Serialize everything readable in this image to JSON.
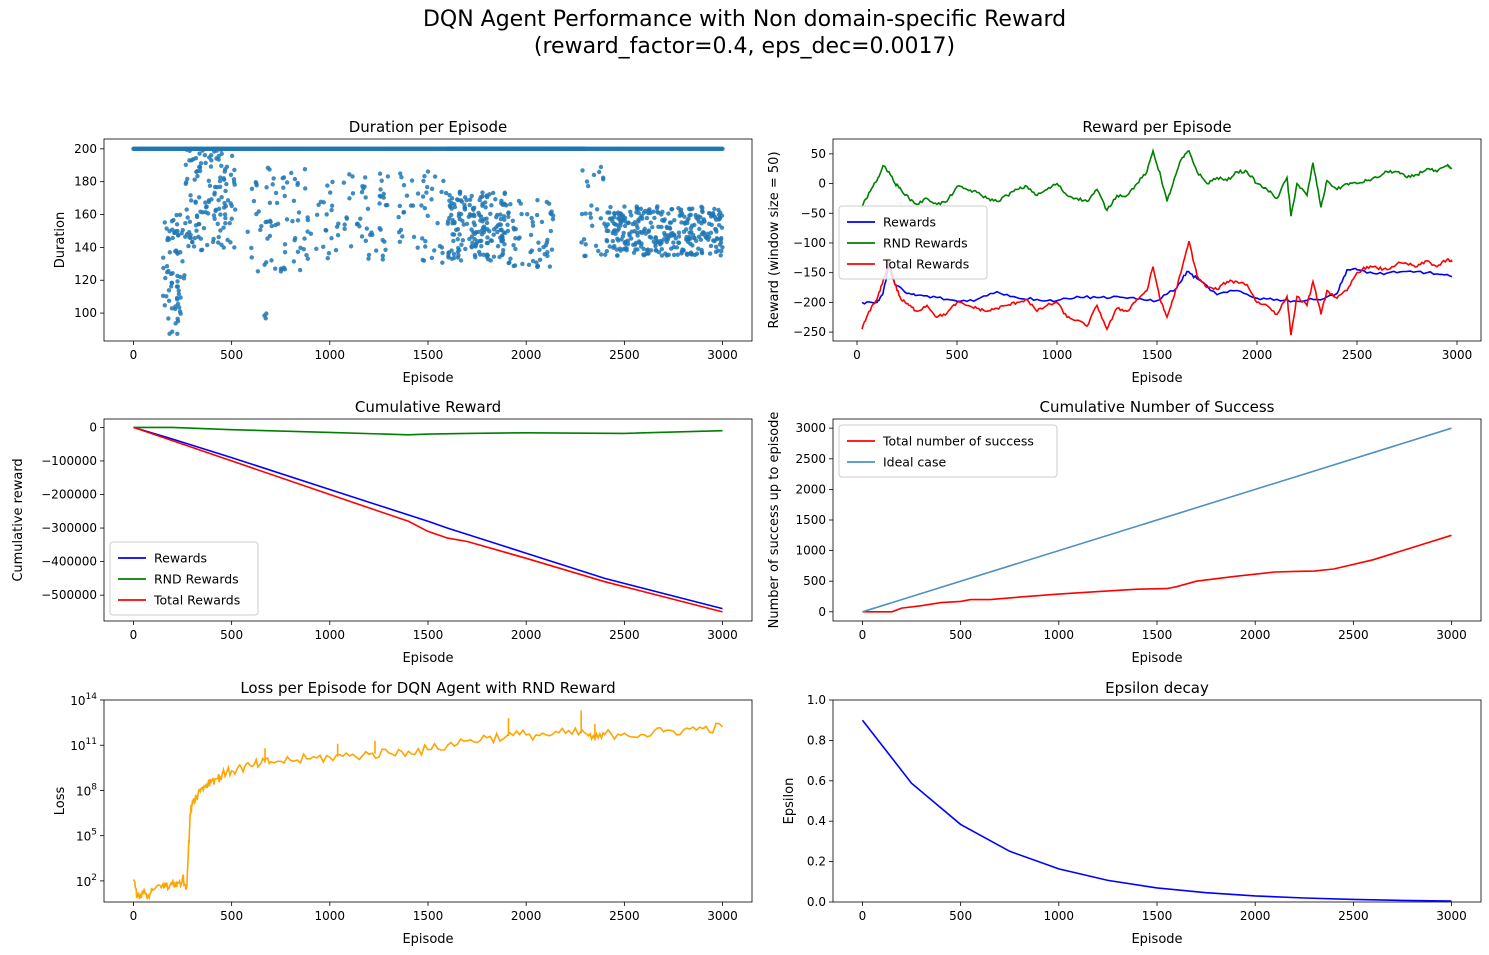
{
  "figure": {
    "title_line1": "DQN Agent Performance with Non domain-specific Reward",
    "title_line2": "(reward_factor=0.4, eps_dec=0.0017)"
  },
  "chart_data": [
    {
      "id": "duration",
      "type": "scatter",
      "title": "Duration per Episode",
      "xlabel": "Episode",
      "ylabel": "Duration",
      "xlim": [
        -150,
        3150
      ],
      "ylim": [
        83,
        206
      ],
      "xticks": [
        0,
        500,
        1000,
        1500,
        2000,
        2500,
        3000
      ],
      "yticks": [
        100,
        120,
        140,
        160,
        180,
        200
      ],
      "color": "#1f77b4",
      "series": [
        {
          "x": [
            0,
            1600
          ],
          "y": [
            200,
            200
          ],
          "kind": "dense-band"
        },
        {
          "x": [
            1600,
            2300
          ],
          "y": [
            200,
            200
          ],
          "kind": "dense-band"
        },
        {
          "x": [
            2300,
            3000
          ],
          "y": [
            200,
            200
          ],
          "kind": "sparse-band"
        }
      ],
      "clusters": [
        {
          "x": [
            150,
            260
          ],
          "y": [
            87,
            160
          ],
          "n": 70
        },
        {
          "x": [
            260,
            520
          ],
          "y": [
            138,
            200
          ],
          "n": 130
        },
        {
          "x": [
            580,
            900
          ],
          "y": [
            125,
            190
          ],
          "n": 70
        },
        {
          "x": [
            650,
            680
          ],
          "y": [
            96,
            102
          ],
          "n": 3
        },
        {
          "x": [
            900,
            1300
          ],
          "y": [
            132,
            185
          ],
          "n": 70
        },
        {
          "x": [
            1350,
            1600
          ],
          "y": [
            130,
            190
          ],
          "n": 45
        },
        {
          "x": [
            1600,
            1900
          ],
          "y": [
            132,
            175
          ],
          "n": 180
        },
        {
          "x": [
            1900,
            2150
          ],
          "y": [
            128,
            170
          ],
          "n": 60
        },
        {
          "x": [
            2280,
            2400
          ],
          "y": [
            133,
            190
          ],
          "n": 25
        },
        {
          "x": [
            2400,
            3000
          ],
          "y": [
            135,
            165
          ],
          "n": 320
        }
      ]
    },
    {
      "id": "reward",
      "type": "line",
      "title": "Reward per Episode",
      "xlabel": "Episode",
      "ylabel": "Reward (window size = 50)",
      "xlim": [
        -120,
        3120
      ],
      "ylim": [
        -265,
        75
      ],
      "xticks": [
        0,
        500,
        1000,
        1500,
        2000,
        2500,
        3000
      ],
      "yticks": [
        -250,
        -200,
        -150,
        -100,
        -50,
        0,
        50
      ],
      "legend": {
        "position": "center-left",
        "entries": [
          "Rewards",
          "RND Rewards",
          "Total Rewards"
        ]
      },
      "series": [
        {
          "name": "Rewards",
          "color": "#0000ff",
          "x": [
            25,
            100,
            130,
            160,
            190,
            250,
            300,
            400,
            500,
            600,
            700,
            800,
            900,
            1000,
            1100,
            1200,
            1300,
            1400,
            1500,
            1600,
            1650,
            1700,
            1800,
            1900,
            2000,
            2100,
            2200,
            2300,
            2400,
            2450,
            2500,
            2600,
            2700,
            2800,
            2900,
            2975
          ],
          "y": [
            -200,
            -200,
            -185,
            -138,
            -170,
            -185,
            -188,
            -192,
            -198,
            -195,
            -182,
            -192,
            -195,
            -197,
            -190,
            -192,
            -190,
            -195,
            -197,
            -175,
            -148,
            -160,
            -187,
            -180,
            -193,
            -195,
            -198,
            -195,
            -185,
            -145,
            -145,
            -152,
            -150,
            -148,
            -152,
            -157
          ]
        },
        {
          "name": "RND Rewards",
          "color": "#008000",
          "x": [
            25,
            60,
            100,
            130,
            160,
            190,
            220,
            260,
            300,
            350,
            400,
            450,
            500,
            550,
            600,
            650,
            700,
            750,
            800,
            850,
            900,
            950,
            1000,
            1050,
            1100,
            1150,
            1200,
            1250,
            1300,
            1350,
            1400,
            1450,
            1480,
            1520,
            1550,
            1580,
            1620,
            1660,
            1700,
            1750,
            1800,
            1850,
            1900,
            1950,
            2000,
            2050,
            2100,
            2150,
            2170,
            2200,
            2250,
            2280,
            2320,
            2350,
            2400,
            2450,
            2500,
            2550,
            2600,
            2650,
            2700,
            2750,
            2800,
            2850,
            2900,
            2950,
            2975
          ],
          "y": [
            -40,
            -15,
            5,
            30,
            20,
            0,
            -10,
            -25,
            -35,
            -25,
            -35,
            -30,
            -5,
            -10,
            -15,
            -25,
            -30,
            -20,
            -10,
            -5,
            -20,
            -10,
            0,
            -20,
            -25,
            -30,
            -10,
            -45,
            -20,
            -20,
            0,
            20,
            55,
            10,
            -30,
            0,
            40,
            55,
            20,
            0,
            10,
            5,
            20,
            20,
            0,
            -10,
            -25,
            10,
            -55,
            0,
            -20,
            35,
            -40,
            5,
            -10,
            0,
            0,
            5,
            10,
            20,
            20,
            10,
            15,
            25,
            20,
            30,
            25
          ]
        },
        {
          "name": "Total Rewards",
          "color": "#ff0000",
          "x": [
            25,
            60,
            100,
            130,
            160,
            190,
            220,
            260,
            300,
            350,
            400,
            450,
            500,
            550,
            600,
            650,
            700,
            750,
            800,
            850,
            900,
            950,
            1000,
            1050,
            1100,
            1150,
            1200,
            1250,
            1300,
            1350,
            1400,
            1450,
            1480,
            1520,
            1550,
            1580,
            1620,
            1660,
            1700,
            1750,
            1800,
            1850,
            1900,
            1950,
            2000,
            2050,
            2100,
            2150,
            2170,
            2200,
            2250,
            2280,
            2320,
            2350,
            2400,
            2450,
            2500,
            2550,
            2600,
            2650,
            2700,
            2750,
            2800,
            2850,
            2900,
            2950,
            2975
          ],
          "y": [
            -245,
            -215,
            -195,
            -165,
            -130,
            -170,
            -195,
            -205,
            -215,
            -205,
            -225,
            -218,
            -200,
            -205,
            -210,
            -215,
            -210,
            -205,
            -200,
            -195,
            -215,
            -205,
            -200,
            -225,
            -230,
            -240,
            -205,
            -245,
            -210,
            -215,
            -195,
            -180,
            -140,
            -200,
            -225,
            -195,
            -150,
            -97,
            -155,
            -175,
            -178,
            -165,
            -165,
            -170,
            -200,
            -205,
            -220,
            -190,
            -255,
            -190,
            -205,
            -165,
            -220,
            -180,
            -193,
            -180,
            -150,
            -140,
            -142,
            -145,
            -135,
            -135,
            -140,
            -130,
            -140,
            -128,
            -132
          ]
        }
      ]
    },
    {
      "id": "cumulative-reward",
      "type": "line",
      "title": "Cumulative Reward",
      "xlabel": "Episode",
      "ylabel": "Cumulative reward",
      "xlim": [
        -150,
        3150
      ],
      "ylim": [
        -577000,
        25000
      ],
      "xticks": [
        0,
        500,
        1000,
        1500,
        2000,
        2500,
        3000
      ],
      "yticks": [
        -500000,
        -400000,
        -300000,
        -200000,
        -100000,
        0
      ],
      "legend": {
        "position": "lower-left",
        "entries": [
          "Rewards",
          "RND Rewards",
          "Total Rewards"
        ]
      },
      "series": [
        {
          "name": "Rewards",
          "color": "#0000ff",
          "x": [
            0,
            200,
            500,
            1000,
            1500,
            1600,
            2000,
            2400,
            3000
          ],
          "y": [
            0,
            -35000,
            -90000,
            -185000,
            -280000,
            -300000,
            -375000,
            -450000,
            -540000
          ]
        },
        {
          "name": "RND Rewards",
          "color": "#008000",
          "x": [
            0,
            200,
            500,
            1000,
            1400,
            1500,
            1700,
            2000,
            2500,
            3000
          ],
          "y": [
            0,
            0,
            -7000,
            -15000,
            -22000,
            -20000,
            -18000,
            -16000,
            -18000,
            -10000
          ]
        },
        {
          "name": "Total Rewards",
          "color": "#ff0000",
          "x": [
            0,
            200,
            500,
            1000,
            1400,
            1500,
            1600,
            1700,
            2000,
            2400,
            3000
          ],
          "y": [
            0,
            -40000,
            -100000,
            -200000,
            -280000,
            -310000,
            -330000,
            -340000,
            -390000,
            -460000,
            -550000
          ]
        }
      ]
    },
    {
      "id": "cumulative-success",
      "type": "line",
      "title": "Cumulative Number of Success",
      "xlabel": "Episode",
      "ylabel": "Number of success up to episode",
      "xlim": [
        -150,
        3150
      ],
      "ylim": [
        -150,
        3150
      ],
      "xticks": [
        0,
        500,
        1000,
        1500,
        2000,
        2500,
        3000
      ],
      "yticks": [
        0,
        500,
        1000,
        1500,
        2000,
        2500,
        3000
      ],
      "legend": {
        "position": "upper-left",
        "entries": [
          "Total number of success",
          "Ideal case"
        ]
      },
      "series": [
        {
          "name": "Total number of success",
          "color": "#ff0000",
          "x": [
            0,
            150,
            200,
            300,
            400,
            500,
            550,
            650,
            800,
            1000,
            1200,
            1400,
            1550,
            1600,
            1700,
            1900,
            2100,
            2200,
            2300,
            2400,
            2600,
            3000
          ],
          "y": [
            0,
            0,
            60,
            100,
            150,
            170,
            200,
            200,
            240,
            290,
            330,
            370,
            380,
            410,
            500,
            580,
            650,
            660,
            665,
            700,
            850,
            1250
          ]
        },
        {
          "name": "Ideal case",
          "color": "#4e91c2",
          "x": [
            0,
            3000
          ],
          "y": [
            0,
            3000
          ]
        }
      ]
    },
    {
      "id": "loss",
      "type": "line",
      "title": "Loss per Episode for DQN Agent with RND Reward",
      "xlabel": "Episode",
      "ylabel": "Loss",
      "yscale": "log",
      "xlim": [
        -150,
        3150
      ],
      "ylim_log10": [
        0.6,
        14
      ],
      "xticks": [
        0,
        500,
        1000,
        1500,
        2000,
        2500,
        3000
      ],
      "yticks": [
        "10^2",
        "10^5",
        "10^8",
        "10^11",
        "10^14"
      ],
      "series": [
        {
          "name": "",
          "color": "#ffa500",
          "x": [
            0,
            20,
            50,
            80,
            100,
            150,
            180,
            200,
            220,
            250,
            270,
            280,
            290,
            300,
            320,
            350,
            380,
            400,
            430,
            450,
            500,
            550,
            600,
            650,
            700,
            800,
            900,
            1000,
            1100,
            1200,
            1300,
            1400,
            1500,
            1600,
            1700,
            1800,
            1900,
            2000,
            2100,
            2200,
            2300,
            2350,
            2400,
            2500,
            2600,
            2700,
            2800,
            2900,
            3000
          ],
          "y_log10": [
            2.1,
            1.0,
            1.2,
            0.9,
            1.4,
            1.8,
            1.5,
            2.0,
            1.6,
            2.2,
            1.5,
            4.0,
            6.5,
            7.3,
            7.6,
            8.2,
            8.5,
            8.7,
            8.8,
            9.0,
            9.3,
            9.5,
            9.6,
            9.8,
            9.9,
            10.0,
            10.1,
            10.2,
            10.3,
            10.4,
            10.5,
            10.6,
            10.7,
            11.0,
            11.3,
            11.5,
            11.6,
            11.7,
            11.7,
            11.8,
            11.8,
            11.4,
            11.7,
            11.8,
            11.7,
            11.9,
            12.0,
            12.1,
            12.2
          ]
        }
      ],
      "spikes": [
        {
          "x": 670,
          "y_log10": 10.8
        },
        {
          "x": 1040,
          "y_log10": 11.1
        },
        {
          "x": 1230,
          "y_log10": 11.3
        },
        {
          "x": 1910,
          "y_log10": 12.8
        },
        {
          "x": 2280,
          "y_log10": 13.3
        },
        {
          "x": 2350,
          "y_log10": 12.4
        }
      ]
    },
    {
      "id": "epsilon",
      "type": "line",
      "title": "Epsilon decay",
      "xlabel": "Episode",
      "ylabel": "Epsilon",
      "xlim": [
        -150,
        3150
      ],
      "ylim": [
        0,
        1
      ],
      "xticks": [
        0,
        500,
        1000,
        1500,
        2000,
        2500,
        3000
      ],
      "yticks": [
        0.0,
        0.2,
        0.4,
        0.6,
        0.8,
        1.0
      ],
      "series": [
        {
          "name": "",
          "color": "#0000ff",
          "x": [
            0,
            250,
            500,
            750,
            1000,
            1250,
            1500,
            1750,
            2000,
            2250,
            2500,
            2750,
            3000
          ],
          "y": [
            0.9,
            0.588,
            0.384,
            0.251,
            0.164,
            0.107,
            0.07,
            0.046,
            0.03,
            0.02,
            0.013,
            0.008,
            0.005
          ]
        }
      ]
    }
  ]
}
